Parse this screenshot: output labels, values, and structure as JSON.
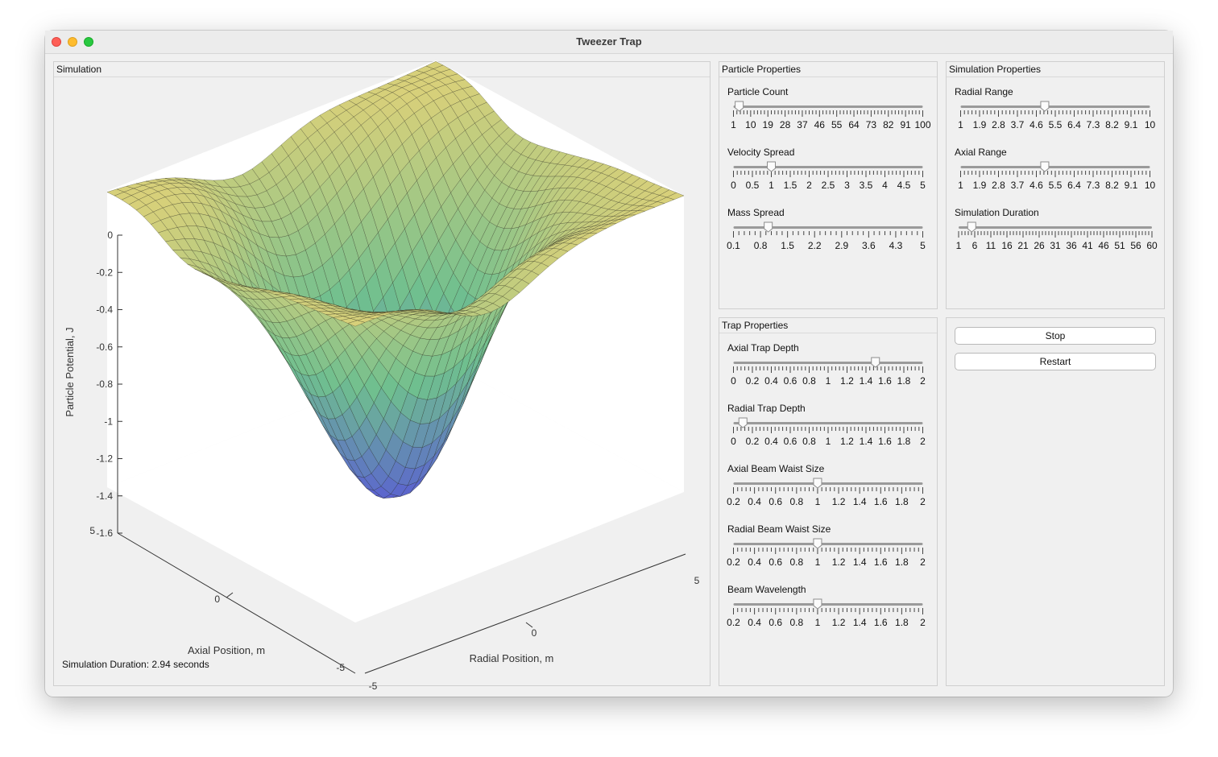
{
  "window": {
    "title": "Tweezer Trap"
  },
  "simulation_panel": {
    "title": "Simulation",
    "status": "Simulation Duration: 2.94 seconds",
    "plot": {
      "zlabel": "Particle Potential, J",
      "xlabel": "Axial Position, m",
      "ylabel": "Radial Position, m",
      "z_ticks": [
        "0",
        "-0.2",
        "-0.4",
        "-0.6",
        "-0.8",
        "-1",
        "-1.2",
        "-1.4",
        "-1.6"
      ],
      "x_ticks": [
        "5",
        "0",
        "-5"
      ],
      "y_ticks": [
        "-5",
        "0",
        "5"
      ],
      "zlim": [
        -1.6,
        0
      ],
      "xlim": [
        -5,
        5
      ],
      "ylim": [
        -5,
        5
      ],
      "colormap": "parula",
      "surface_colors": {
        "high": "#d8d07a",
        "mid": "#6fbf8f",
        "low": "#5a5fd2"
      }
    }
  },
  "particle_panel": {
    "title": "Particle Properties",
    "sliders": [
      {
        "label": "Particle Count",
        "ticks": [
          "1",
          "10",
          "19",
          "28",
          "37",
          "46",
          "55",
          "64",
          "73",
          "82",
          "91",
          "100"
        ],
        "min": 1,
        "max": 100,
        "value": 4
      },
      {
        "label": "Velocity Spread",
        "ticks": [
          "0",
          "0.5",
          "1",
          "1.5",
          "2",
          "2.5",
          "3",
          "3.5",
          "4",
          "4.5",
          "5"
        ],
        "min": 0,
        "max": 5,
        "value": 1
      },
      {
        "label": "Mass Spread",
        "ticks": [
          "0.1",
          "0.8",
          "1.5",
          "2.2",
          "2.9",
          "3.6",
          "4.3",
          "5"
        ],
        "min": 0.1,
        "max": 5,
        "value": 1
      }
    ]
  },
  "sim_props_panel": {
    "title": "Simulation Properties",
    "sliders": [
      {
        "label": "Radial Range",
        "ticks": [
          "1",
          "1.9",
          "2.8",
          "3.7",
          "4.6",
          "5.5",
          "6.4",
          "7.3",
          "8.2",
          "9.1",
          "10"
        ],
        "min": 1,
        "max": 10,
        "value": 5
      },
      {
        "label": "Axial Range",
        "ticks": [
          "1",
          "1.9",
          "2.8",
          "3.7",
          "4.6",
          "5.5",
          "6.4",
          "7.3",
          "8.2",
          "9.1",
          "10"
        ],
        "min": 1,
        "max": 10,
        "value": 5
      },
      {
        "label": "Simulation Duration",
        "ticks": [
          "1",
          "6",
          "11",
          "16",
          "21",
          "26",
          "31",
          "36",
          "41",
          "46",
          "51",
          "56",
          "60"
        ],
        "min": 1,
        "max": 60,
        "value": 5
      }
    ]
  },
  "trap_panel": {
    "title": "Trap Properties",
    "sliders": [
      {
        "label": "Axial Trap Depth",
        "ticks": [
          "0",
          "0.2",
          "0.4",
          "0.6",
          "0.8",
          "1",
          "1.2",
          "1.4",
          "1.6",
          "1.8",
          "2"
        ],
        "min": 0,
        "max": 2,
        "value": 1.5
      },
      {
        "label": "Radial Trap Depth",
        "ticks": [
          "0",
          "0.2",
          "0.4",
          "0.6",
          "0.8",
          "1",
          "1.2",
          "1.4",
          "1.6",
          "1.8",
          "2"
        ],
        "min": 0,
        "max": 2,
        "value": 0.1
      },
      {
        "label": "Axial Beam Waist Size",
        "ticks": [
          "0.2",
          "0.4",
          "0.6",
          "0.8",
          "1",
          "1.2",
          "1.4",
          "1.6",
          "1.8",
          "2"
        ],
        "min": 0.2,
        "max": 2,
        "value": 1
      },
      {
        "label": "Radial Beam Waist Size",
        "ticks": [
          "0.2",
          "0.4",
          "0.6",
          "0.8",
          "1",
          "1.2",
          "1.4",
          "1.6",
          "1.8",
          "2"
        ],
        "min": 0.2,
        "max": 2,
        "value": 1
      },
      {
        "label": "Beam Wavelength",
        "ticks": [
          "0.2",
          "0.4",
          "0.6",
          "0.8",
          "1",
          "1.2",
          "1.4",
          "1.6",
          "1.8",
          "2"
        ],
        "min": 0.2,
        "max": 2,
        "value": 1
      }
    ]
  },
  "controls_panel": {
    "stop_label": "Stop",
    "restart_label": "Restart"
  }
}
